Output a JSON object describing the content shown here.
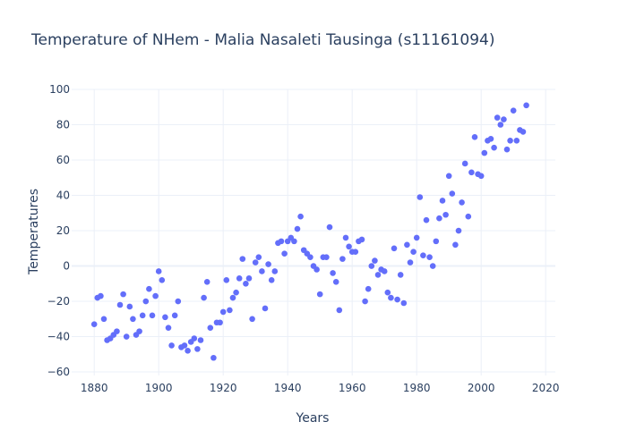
{
  "chart_data": {
    "type": "scatter",
    "title": "Temperature of NHem - Malia Nasaleti Tausinga (s11161094)",
    "xlabel": "Years",
    "ylabel": "Temperatures",
    "xlim": [
      1873,
      2023
    ],
    "ylim": [
      -62,
      100
    ],
    "xticks": [
      1880,
      1900,
      1920,
      1940,
      1960,
      1980,
      2000,
      2020
    ],
    "yticks": [
      -60,
      -40,
      -20,
      0,
      20,
      40,
      60,
      80,
      100
    ],
    "grid": true,
    "marker_color": "#636efa",
    "x": [
      1880,
      1881,
      1882,
      1883,
      1884,
      1885,
      1886,
      1887,
      1888,
      1889,
      1890,
      1891,
      1892,
      1893,
      1894,
      1895,
      1896,
      1897,
      1898,
      1899,
      1900,
      1901,
      1902,
      1903,
      1904,
      1905,
      1906,
      1907,
      1908,
      1909,
      1910,
      1911,
      1912,
      1913,
      1914,
      1915,
      1916,
      1917,
      1918,
      1919,
      1920,
      1921,
      1922,
      1923,
      1924,
      1925,
      1926,
      1927,
      1928,
      1929,
      1930,
      1931,
      1932,
      1933,
      1934,
      1935,
      1936,
      1937,
      1938,
      1939,
      1940,
      1941,
      1942,
      1943,
      1944,
      1945,
      1946,
      1947,
      1948,
      1949,
      1950,
      1951,
      1952,
      1953,
      1954,
      1955,
      1956,
      1957,
      1958,
      1959,
      1960,
      1961,
      1962,
      1963,
      1964,
      1965,
      1966,
      1967,
      1968,
      1969,
      1970,
      1971,
      1972,
      1973,
      1974,
      1975,
      1976,
      1977,
      1978,
      1979,
      1980,
      1981,
      1982,
      1983,
      1984,
      1985,
      1986,
      1987,
      1988,
      1989,
      1990,
      1991,
      1992,
      1993,
      1994,
      1995,
      1996,
      1997,
      1998,
      1999,
      2000,
      2001,
      2002,
      2003,
      2004,
      2005,
      2006,
      2007,
      2008,
      2009,
      2010,
      2011,
      2012,
      2013,
      2014
    ],
    "y": [
      -33,
      -18,
      -17,
      -30,
      -42,
      -41,
      -39,
      -37,
      -22,
      -16,
      -40,
      -23,
      -30,
      -39,
      -37,
      -28,
      -20,
      -13,
      -28,
      -17,
      -3,
      -8,
      -29,
      -35,
      -45,
      -28,
      -20,
      -46,
      -45,
      -48,
      -43,
      -41,
      -47,
      -42,
      -18,
      -9,
      -35,
      -52,
      -32,
      -32,
      -26,
      -8,
      -25,
      -18,
      -15,
      -7,
      4,
      -10,
      -7,
      -30,
      2,
      5,
      -3,
      -24,
      1,
      -8,
      -3,
      13,
      14,
      7,
      14,
      16,
      14,
      21,
      28,
      9,
      7,
      5,
      0,
      -2,
      -16,
      5,
      5,
      22,
      -4,
      -9,
      -25,
      4,
      16,
      11,
      8,
      8,
      14,
      15,
      -20,
      -13,
      0,
      3,
      -5,
      -2,
      -3,
      -15,
      -18,
      10,
      -19,
      -5,
      -21,
      12,
      2,
      8,
      16,
      39,
      6,
      26,
      5,
      0,
      14,
      27,
      37,
      29,
      51,
      41,
      12,
      20,
      36,
      58,
      28,
      53,
      73,
      52,
      51,
      64,
      71,
      72,
      67,
      84,
      80,
      83,
      66,
      71,
      88,
      71,
      77,
      76,
      91
    ]
  }
}
